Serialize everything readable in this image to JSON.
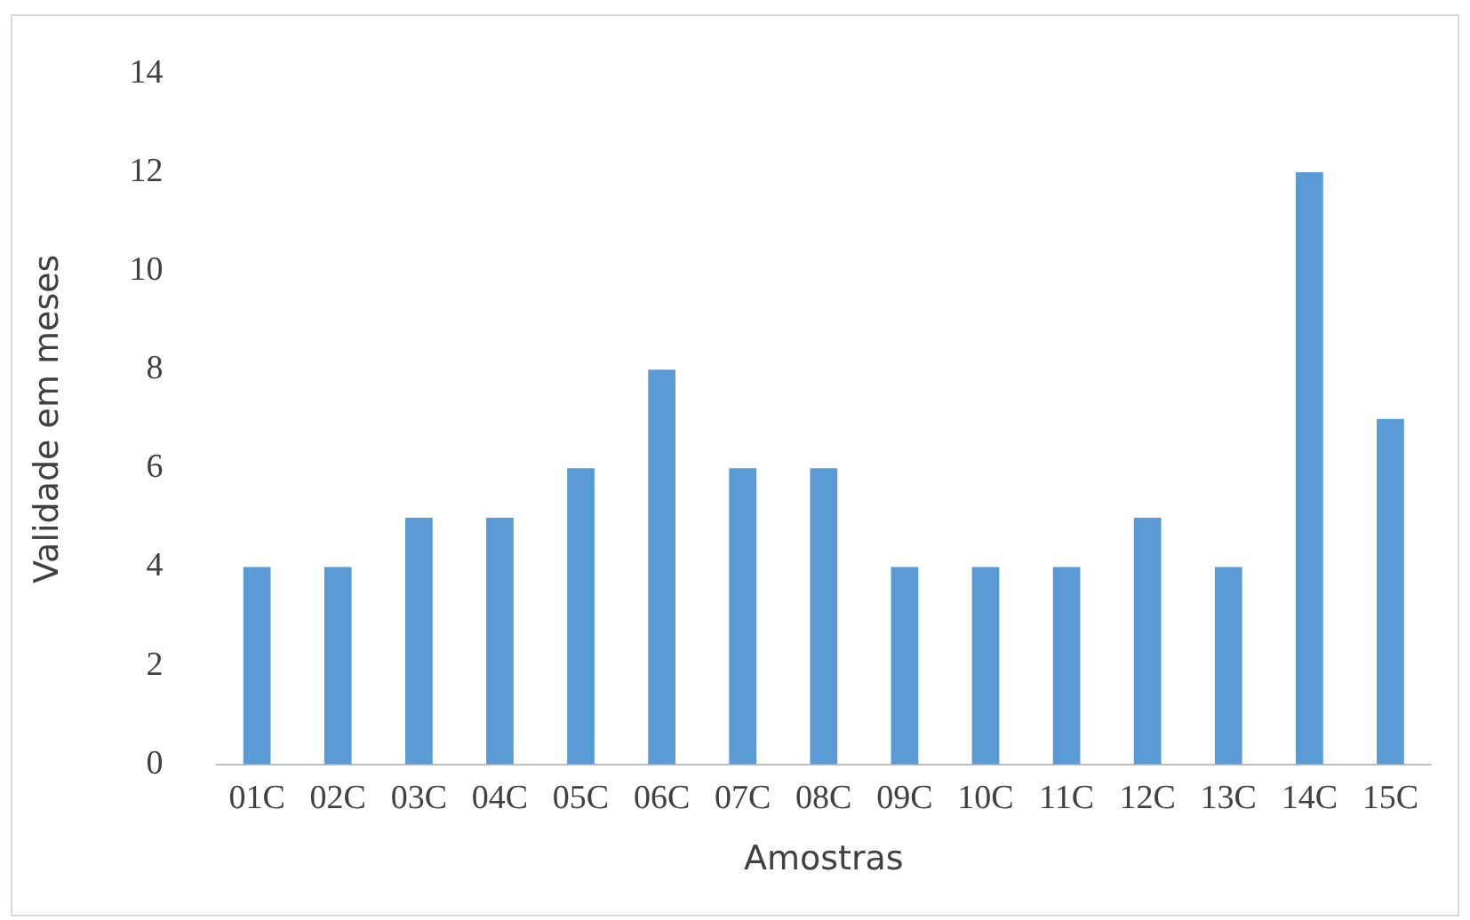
{
  "chart_data": {
    "type": "bar",
    "xlabel": "Amostras",
    "ylabel": "Validade em meses",
    "categories": [
      "01C",
      "02C",
      "03C",
      "04C",
      "05C",
      "06C",
      "07C",
      "08C",
      "09C",
      "10C",
      "11C",
      "12C",
      "13C",
      "14C",
      "15C"
    ],
    "values": [
      4,
      4,
      5,
      5,
      6,
      8,
      6,
      6,
      4,
      4,
      4,
      5,
      4,
      12,
      7
    ],
    "color": "#5b9bd5",
    "ylim": [
      0,
      14
    ],
    "yticks": [
      0,
      2,
      4,
      6,
      8,
      10,
      12,
      14
    ],
    "grid": false,
    "legend": false
  }
}
